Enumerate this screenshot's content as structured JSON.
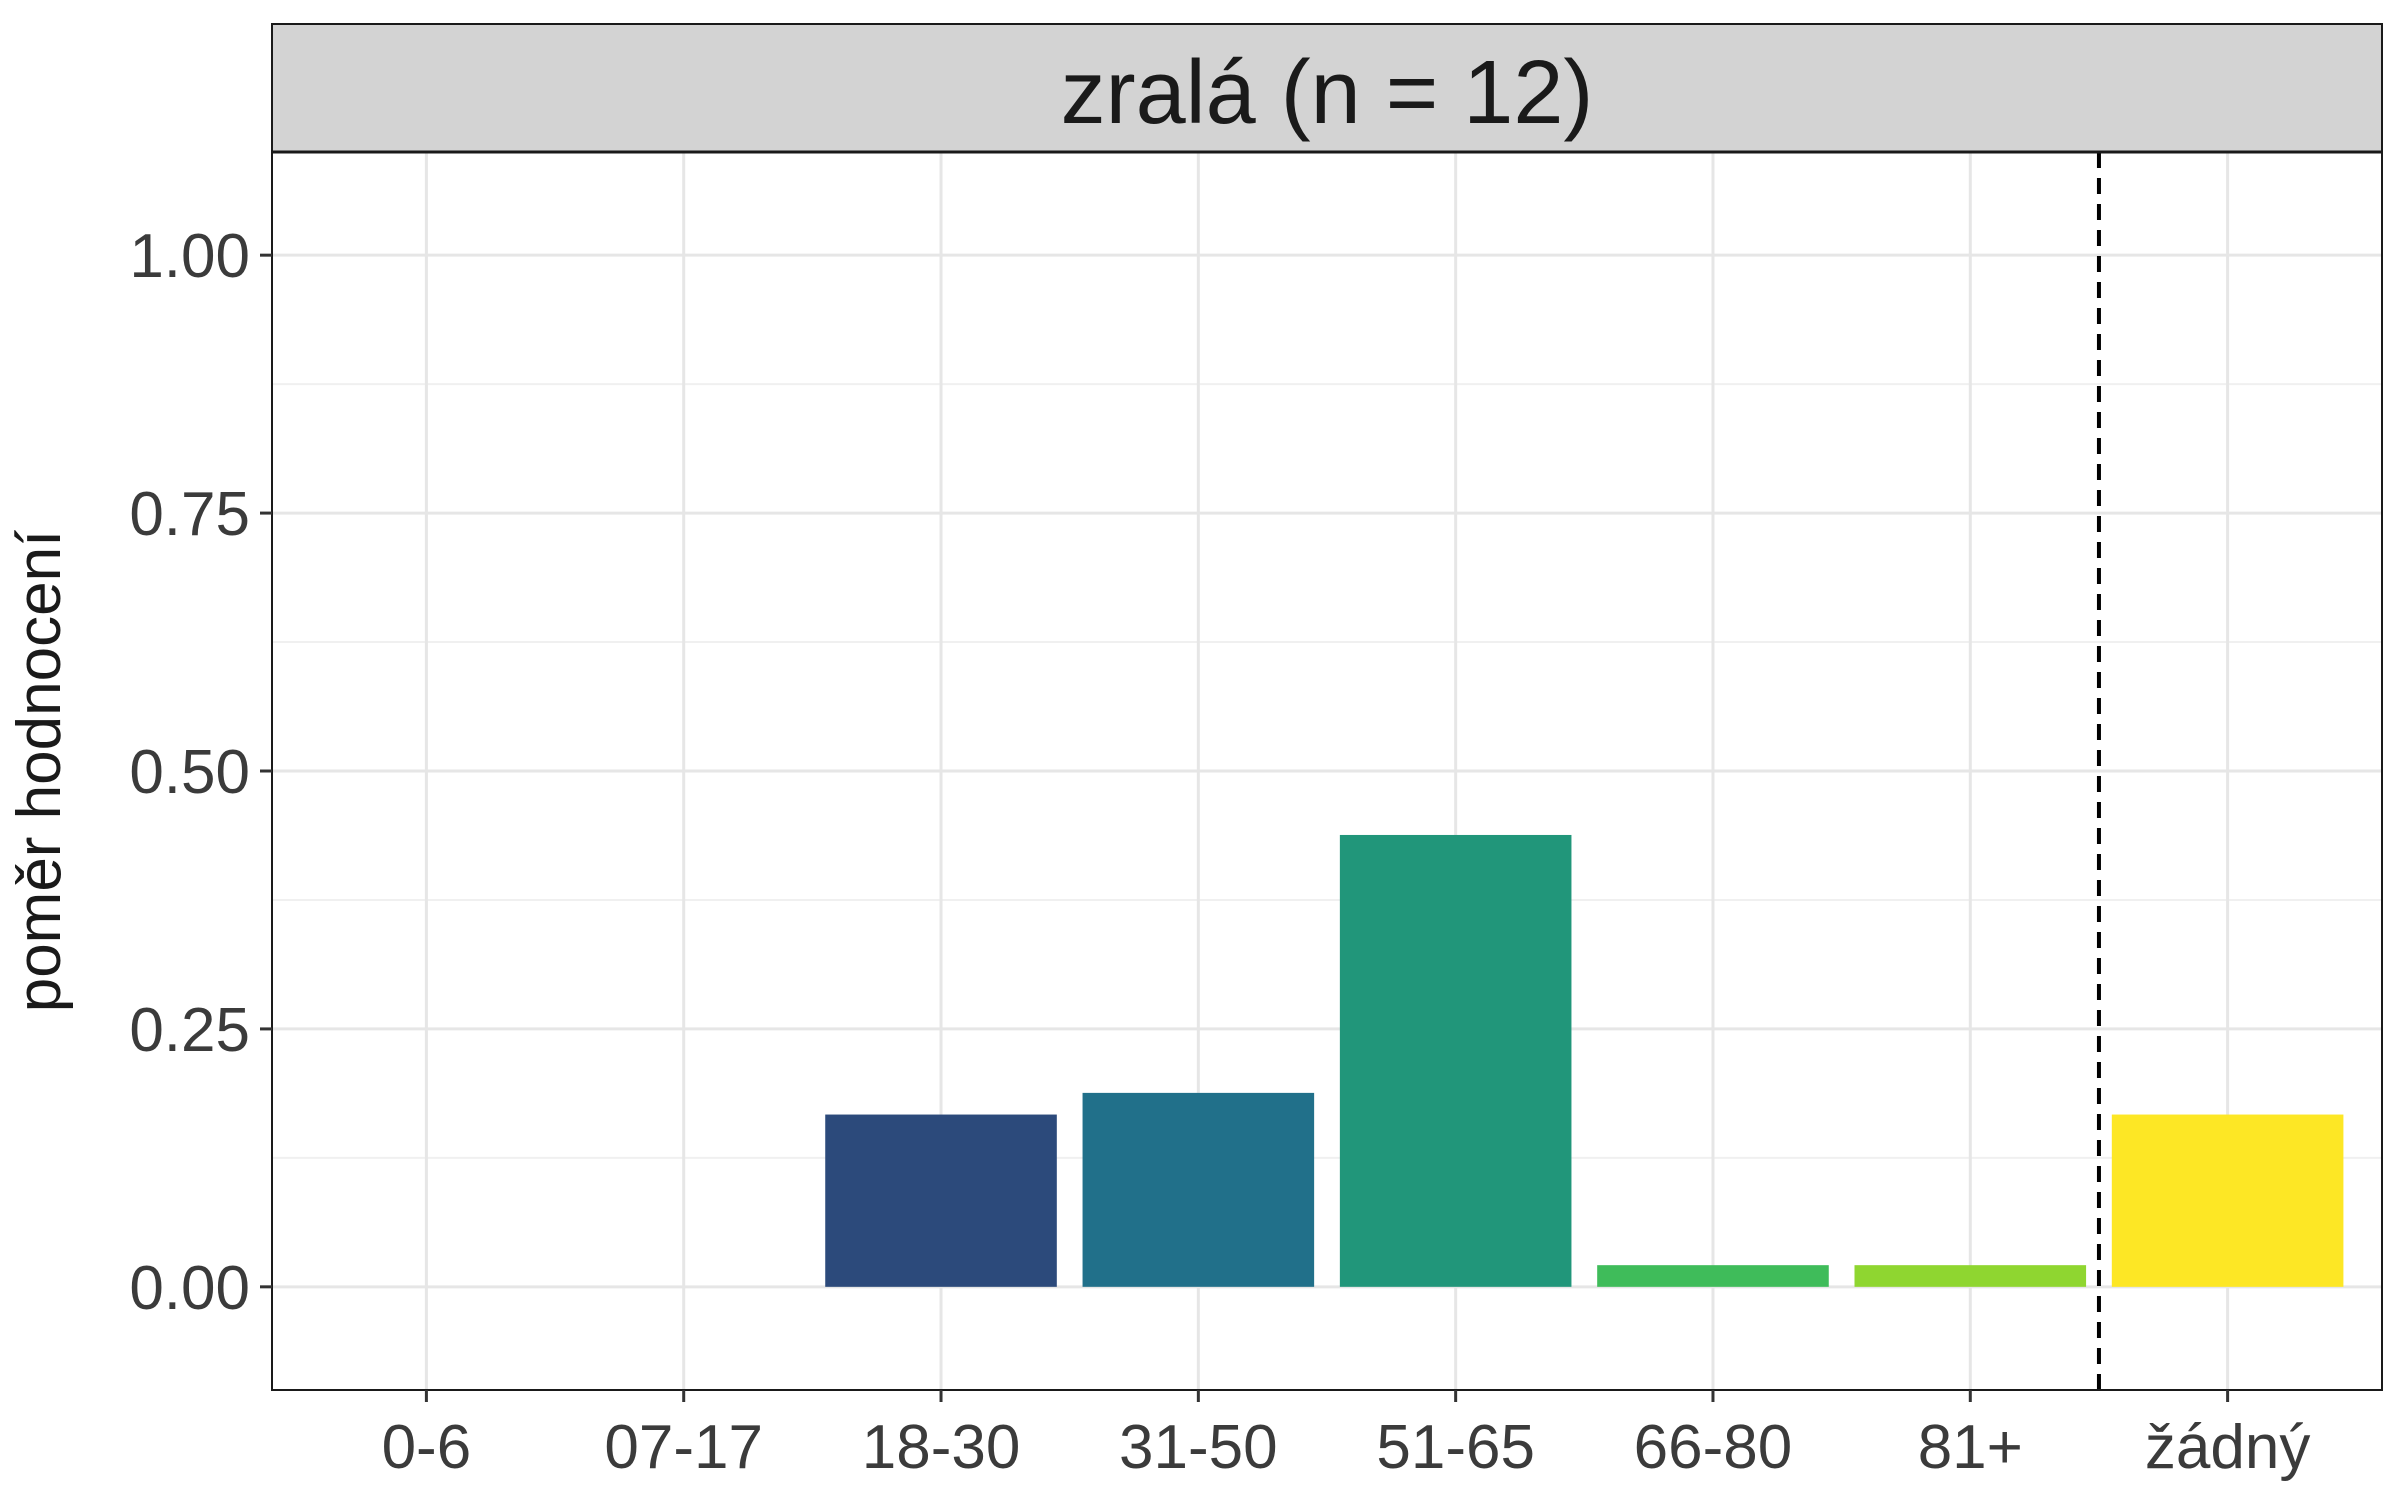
{
  "chart_data": {
    "type": "bar",
    "title": "zralá (n = 12)",
    "xlabel": "",
    "ylabel": "poměr hodnocení",
    "categories": [
      "0-6",
      "07-17",
      "18-30",
      "31-50",
      "51-65",
      "66-80",
      "81+",
      "žádný"
    ],
    "values": [
      0,
      0,
      0.167,
      0.188,
      0.438,
      0.021,
      0.021,
      0.167
    ],
    "colors": [
      "#440154",
      "#46327E",
      "#2C4A7B",
      "#21708A",
      "#21967A",
      "#3FBC5A",
      "#8FD630",
      "#FDE725"
    ],
    "ylim": [
      -0.1,
      1.1
    ],
    "yticks": [
      0,
      0.25,
      0.5,
      0.75,
      1.0
    ],
    "ytick_labels": [
      "0.00",
      "0.25",
      "0.50",
      "0.75",
      "1.00"
    ],
    "reference_line": {
      "style": "dashed",
      "between": [
        "81+",
        "žádný"
      ],
      "color": "#000000"
    },
    "grid": true,
    "legend": "none"
  }
}
